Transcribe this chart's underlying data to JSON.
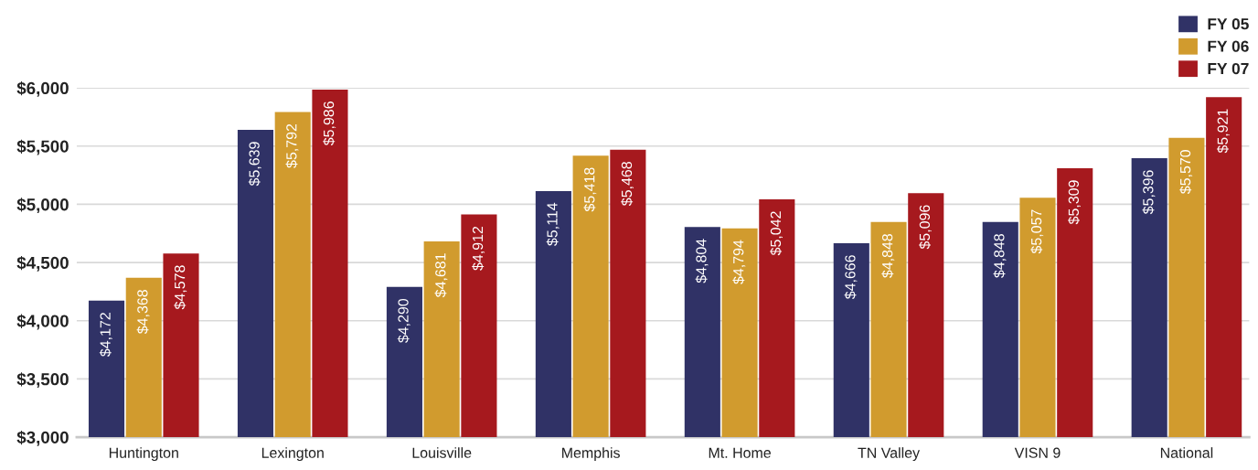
{
  "chart_data": {
    "type": "bar",
    "categories": [
      "Huntington",
      "Lexington",
      "Louisville",
      "Memphis",
      "Mt. Home",
      "TN Valley",
      "VISN 9",
      "National"
    ],
    "series": [
      {
        "name": "FY 05",
        "color": "#303266",
        "values": [
          4172,
          5639,
          4290,
          5114,
          4804,
          4666,
          4848,
          5396
        ],
        "value_labels": [
          "$4,172",
          "$5,639",
          "$4,290",
          "$5,114",
          "$4,804",
          "$4,666",
          "$4,848",
          "$5,396"
        ]
      },
      {
        "name": "FY 06",
        "color": "#d19b2e",
        "values": [
          4368,
          5792,
          4681,
          5418,
          4794,
          4848,
          5057,
          5570
        ],
        "value_labels": [
          "$4,368",
          "$5,792",
          "$4,681",
          "$5,418",
          "$4,794",
          "$4,848",
          "$5,057",
          "$5,570"
        ]
      },
      {
        "name": "FY 07",
        "color": "#a6191e",
        "values": [
          4578,
          5986,
          4912,
          5468,
          5042,
          5096,
          5309,
          5921
        ],
        "value_labels": [
          "$4,578",
          "$5,986",
          "$4,912",
          "$5,468",
          "$5,042",
          "$5,096",
          "$5,309",
          "$5,921"
        ]
      }
    ],
    "ylim": [
      3000,
      6000
    ],
    "yticks": [
      {
        "value": 3000,
        "label": "$3,000"
      },
      {
        "value": 3500,
        "label": "$3,500"
      },
      {
        "value": 4000,
        "label": "$4,000"
      },
      {
        "value": 4500,
        "label": "$4,500"
      },
      {
        "value": 5000,
        "label": "$5,000"
      },
      {
        "value": 5500,
        "label": "$5,500"
      },
      {
        "value": 6000,
        "label": "$6,000"
      }
    ],
    "grid": "y",
    "legend": "top right"
  }
}
